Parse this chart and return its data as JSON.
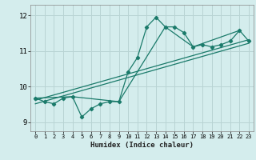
{
  "xlabel": "Humidex (Indice chaleur)",
  "xlim": [
    -0.5,
    23.5
  ],
  "ylim": [
    8.75,
    12.3
  ],
  "yticks": [
    9,
    10,
    11,
    12
  ],
  "xticks": [
    0,
    1,
    2,
    3,
    4,
    5,
    6,
    7,
    8,
    9,
    10,
    11,
    12,
    13,
    14,
    15,
    16,
    17,
    18,
    19,
    20,
    21,
    22,
    23
  ],
  "bg_color": "#d4eded",
  "grid_color": "#b8d4d4",
  "line_color": "#1a7a6a",
  "series_main": {
    "x": [
      0,
      1,
      2,
      3,
      4,
      5,
      6,
      7,
      8,
      9,
      10,
      11,
      12,
      13,
      14,
      15,
      16,
      17,
      18,
      19,
      20,
      21,
      22,
      23
    ],
    "y": [
      9.68,
      9.58,
      9.52,
      9.68,
      9.72,
      9.15,
      9.38,
      9.52,
      9.58,
      9.58,
      10.42,
      10.82,
      11.68,
      11.95,
      11.68,
      11.68,
      11.52,
      11.12,
      11.18,
      11.12,
      11.18,
      11.28,
      11.58,
      11.28
    ]
  },
  "series_poly": {
    "x": [
      0,
      4,
      9,
      14,
      17,
      22
    ],
    "y": [
      9.68,
      9.72,
      9.58,
      11.68,
      11.12,
      11.58
    ]
  },
  "series_line1": {
    "x": [
      0,
      23
    ],
    "y": [
      9.52,
      11.22
    ]
  },
  "series_line2": {
    "x": [
      0,
      23
    ],
    "y": [
      9.62,
      11.32
    ]
  }
}
